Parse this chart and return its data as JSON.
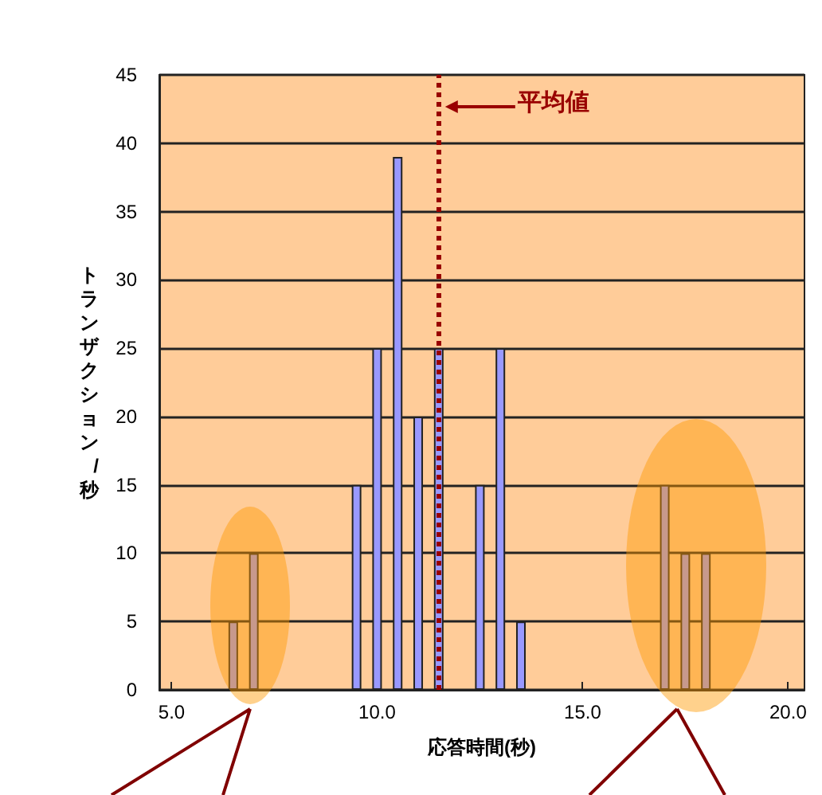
{
  "chart_data": {
    "type": "bar",
    "xlabel": "応答時間(秒)",
    "ylabel": "トランザクション/秒",
    "x": [
      6.5,
      7.0,
      9.5,
      10.0,
      10.5,
      11.0,
      11.5,
      12.5,
      13.0,
      13.5,
      17.0,
      17.5,
      18.0
    ],
    "series": [
      {
        "color": "#9999ff",
        "values": [
          5,
          10,
          15,
          25,
          39,
          20,
          25,
          15,
          25,
          5,
          15,
          10,
          10
        ]
      }
    ],
    "xlim": [
      4.7,
      20.4
    ],
    "xticks": [
      {
        "value": 5,
        "label": "5.0"
      },
      {
        "value": 10,
        "label": "10.0"
      },
      {
        "value": 15,
        "label": "15.0"
      },
      {
        "value": 20,
        "label": "20.0"
      }
    ],
    "ylim": [
      0,
      45
    ],
    "yticks": [
      0,
      5,
      10,
      15,
      20,
      25,
      30,
      35,
      40,
      45
    ],
    "grid": "y",
    "ref_lines": [
      {
        "axis": "x",
        "value": 11.5,
        "label": "平均値",
        "color": "#990000",
        "line_style": "dotted"
      }
    ]
  }
}
